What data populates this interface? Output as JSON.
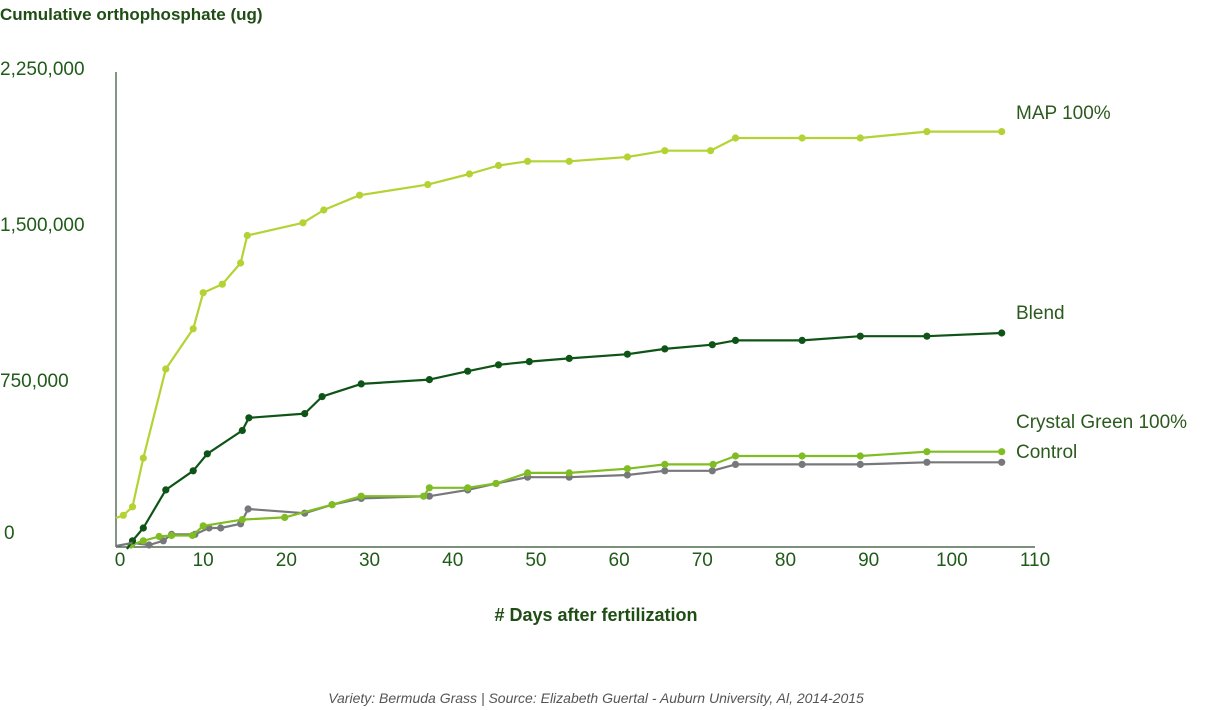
{
  "chart_data": {
    "type": "line",
    "title": "Cumulative orthophosphate (ug)",
    "xlabel": "# Days after fertilization",
    "ylabel": "",
    "xlim": [
      0,
      110
    ],
    "ylim": [
      0,
      2250000
    ],
    "x_ticks": [
      0,
      10,
      20,
      30,
      40,
      50,
      60,
      70,
      80,
      90,
      100,
      110
    ],
    "y_ticks": [
      0,
      750000,
      1500000,
      2250000
    ],
    "y_tick_labels": [
      "0",
      "750,000",
      "1,500,000",
      "2,250,000"
    ],
    "source": "Variety: Bermuda Grass | Source: Elizabeth Guertal - Auburn University, Al, 2014-2015",
    "series": [
      {
        "name": "MAP 100%",
        "color": "#b3d334",
        "points": [
          [
            0.4,
            140000
          ],
          [
            1.5,
            180000
          ],
          [
            2.8,
            410000
          ],
          [
            5.5,
            830000
          ],
          [
            8.8,
            1020000
          ],
          [
            10,
            1190000
          ],
          [
            12.3,
            1230000
          ],
          [
            14.5,
            1330000
          ],
          [
            15.3,
            1460000
          ],
          [
            22,
            1520000
          ],
          [
            24.5,
            1580000
          ],
          [
            28.8,
            1650000
          ],
          [
            37,
            1700000
          ],
          [
            42,
            1750000
          ],
          [
            45.5,
            1790000
          ],
          [
            49,
            1810000
          ],
          [
            54,
            1810000
          ],
          [
            61,
            1830000
          ],
          [
            65.5,
            1860000
          ],
          [
            71,
            1860000
          ],
          [
            74,
            1920000
          ],
          [
            82,
            1920000
          ],
          [
            89,
            1920000
          ],
          [
            97,
            1950000
          ],
          [
            106,
            1950000
          ]
        ]
      },
      {
        "name": "Blend",
        "color": "#0f5417",
        "points": [
          [
            1.5,
            20000
          ],
          [
            2.8,
            80000
          ],
          [
            5.5,
            260000
          ],
          [
            8.8,
            350000
          ],
          [
            10.5,
            430000
          ],
          [
            14.7,
            540000
          ],
          [
            15.5,
            600000
          ],
          [
            22.2,
            620000
          ],
          [
            24.3,
            700000
          ],
          [
            29,
            760000
          ],
          [
            37.2,
            780000
          ],
          [
            41.8,
            820000
          ],
          [
            45.5,
            850000
          ],
          [
            49.2,
            865000
          ],
          [
            54,
            880000
          ],
          [
            61,
            900000
          ],
          [
            65.5,
            925000
          ],
          [
            71.2,
            945000
          ],
          [
            74,
            965000
          ],
          [
            82,
            965000
          ],
          [
            89,
            985000
          ],
          [
            97,
            985000
          ],
          [
            106,
            1000000
          ]
        ]
      },
      {
        "name": "Crystal Green 100%",
        "color": "#7fbd22",
        "points": [
          [
            1.3,
            0
          ],
          [
            2.8,
            20000
          ],
          [
            4.7,
            40000
          ],
          [
            6.2,
            45000
          ],
          [
            8.7,
            45000
          ],
          [
            10,
            90000
          ],
          [
            14.7,
            120000
          ],
          [
            19.8,
            130000
          ],
          [
            25.5,
            190000
          ],
          [
            29,
            230000
          ],
          [
            36.5,
            230000
          ],
          [
            37.2,
            270000
          ],
          [
            41.8,
            270000
          ],
          [
            45.2,
            290000
          ],
          [
            49,
            340000
          ],
          [
            54,
            340000
          ],
          [
            61,
            360000
          ],
          [
            65.5,
            380000
          ],
          [
            71.3,
            380000
          ],
          [
            74,
            420000
          ],
          [
            82,
            420000
          ],
          [
            89,
            420000
          ],
          [
            97,
            440000
          ],
          [
            106,
            440000
          ]
        ]
      },
      {
        "name": "Control",
        "color": "#77787b",
        "points": [
          [
            1.5,
            10000
          ],
          [
            3.5,
            0
          ],
          [
            5.2,
            20000
          ],
          [
            6.2,
            50000
          ],
          [
            9,
            50000
          ],
          [
            10.7,
            80000
          ],
          [
            12.1,
            80000
          ],
          [
            14.5,
            100000
          ],
          [
            15.4,
            170000
          ],
          [
            22.2,
            150000
          ],
          [
            25.5,
            190000
          ],
          [
            29,
            220000
          ],
          [
            37.2,
            230000
          ],
          [
            41.8,
            260000
          ],
          [
            45.2,
            290000
          ],
          [
            49,
            320000
          ],
          [
            54,
            320000
          ],
          [
            61,
            330000
          ],
          [
            65.5,
            350000
          ],
          [
            71.2,
            350000
          ],
          [
            74,
            380000
          ],
          [
            82,
            380000
          ],
          [
            89,
            380000
          ],
          [
            97,
            390000
          ],
          [
            106,
            390000
          ]
        ]
      }
    ]
  }
}
